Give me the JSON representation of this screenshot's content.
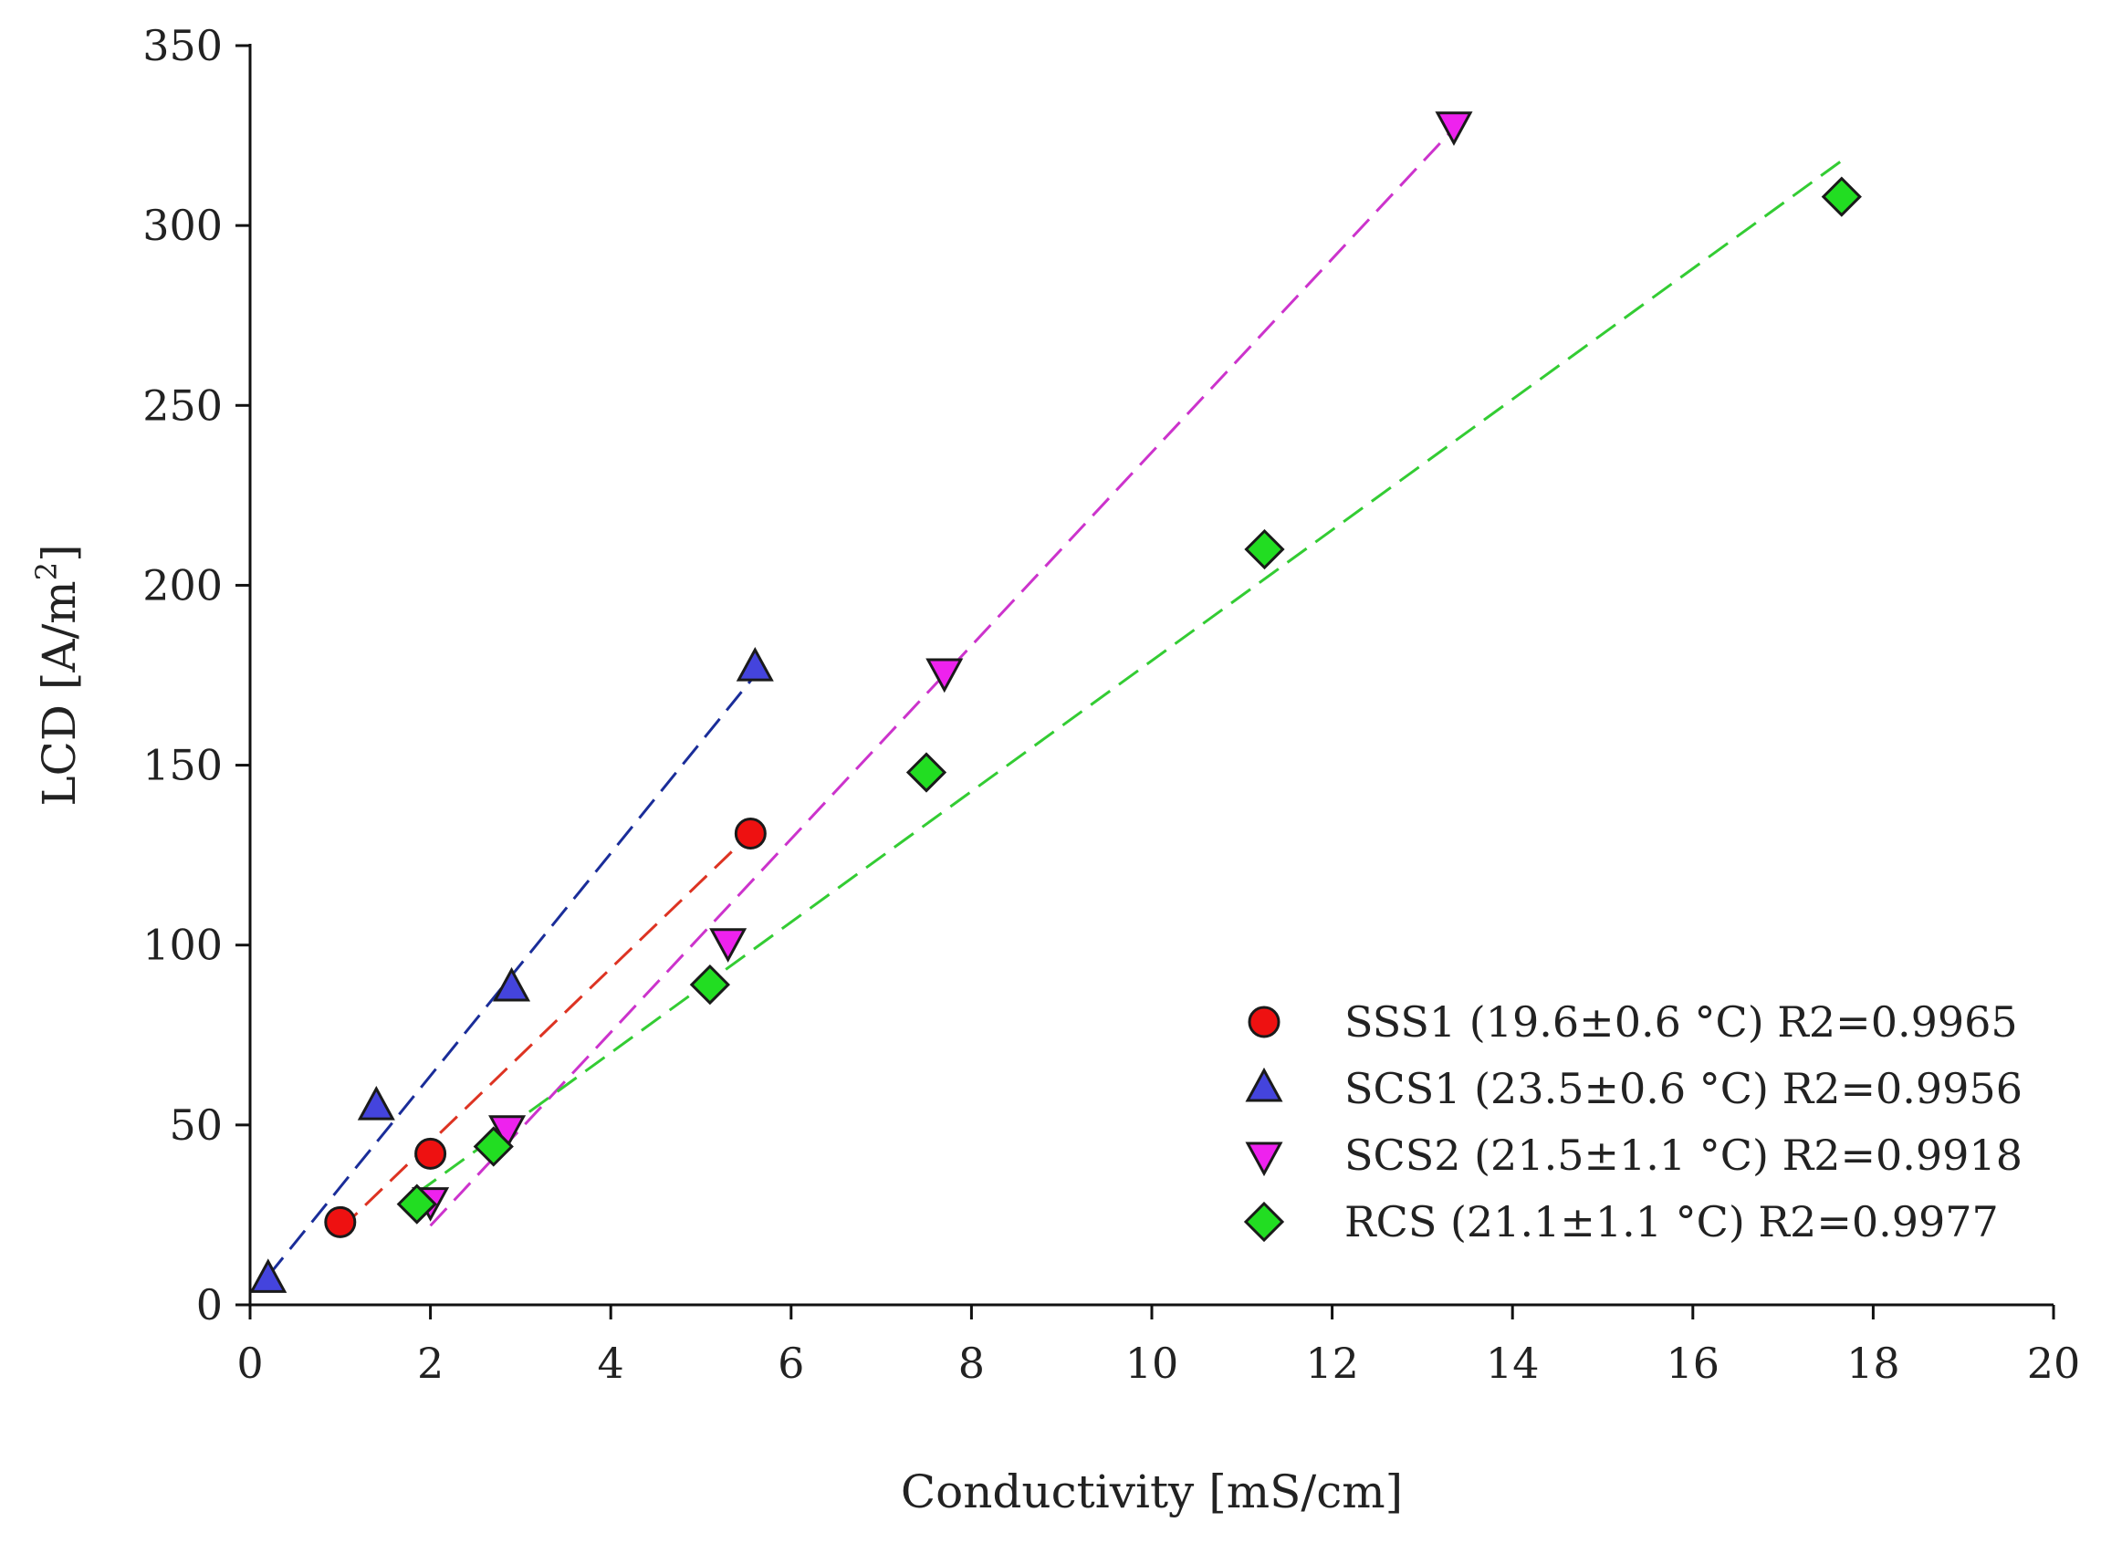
{
  "chart_data": {
    "type": "scatter",
    "xlabel": "Conductivity [mS/cm]",
    "ylabel": "LCD [A/m",
    "ylabel_superscript": "2",
    "ylabel_suffix": "]",
    "xlim": [
      0,
      20
    ],
    "ylim": [
      0,
      350
    ],
    "xticks": [
      0,
      2,
      4,
      6,
      8,
      10,
      12,
      14,
      16,
      18,
      20
    ],
    "yticks": [
      0,
      50,
      100,
      150,
      200,
      250,
      300,
      350
    ],
    "grid": false,
    "legend_position": "lower-right",
    "series": [
      {
        "name": "SSS1 (19.6±0.6 °C) R2=0.9965",
        "marker": "circle",
        "color": "#ee1111",
        "line_color": "#dd3322",
        "points": [
          [
            1.0,
            23
          ],
          [
            2.0,
            42
          ],
          [
            5.55,
            131
          ]
        ],
        "fit_line": [
          [
            1.0,
            21
          ],
          [
            5.55,
            131
          ]
        ]
      },
      {
        "name": "SCS1 (23.5±0.6 °C) R2=0.9956",
        "marker": "triangle-up",
        "color": "#4444dd",
        "line_color": "#1a2d99",
        "points": [
          [
            0.2,
            7
          ],
          [
            1.4,
            55
          ],
          [
            2.9,
            88
          ],
          [
            5.6,
            177
          ]
        ],
        "fit_line": [
          [
            0.2,
            8
          ],
          [
            5.6,
            175
          ]
        ]
      },
      {
        "name": "SCS2 (21.5±1.1 °C) R2=0.9918",
        "marker": "triangle-down",
        "color": "#ee22ee",
        "line_color": "#cc33cc",
        "points": [
          [
            2.0,
            29
          ],
          [
            2.85,
            49
          ],
          [
            5.3,
            101
          ],
          [
            7.7,
            176
          ],
          [
            13.35,
            328
          ]
        ],
        "fit_line": [
          [
            2.0,
            22
          ],
          [
            13.35,
            327
          ]
        ]
      },
      {
        "name": "RCS (21.1±1.1 °C) R2=0.9977",
        "marker": "diamond",
        "color": "#22dd22",
        "line_color": "#33cc33",
        "points": [
          [
            1.85,
            28
          ],
          [
            2.7,
            44
          ],
          [
            5.1,
            89
          ],
          [
            7.5,
            148
          ],
          [
            11.25,
            210
          ],
          [
            17.65,
            308
          ]
        ],
        "fit_line": [
          [
            1.85,
            31
          ],
          [
            17.65,
            318
          ]
        ]
      }
    ]
  }
}
